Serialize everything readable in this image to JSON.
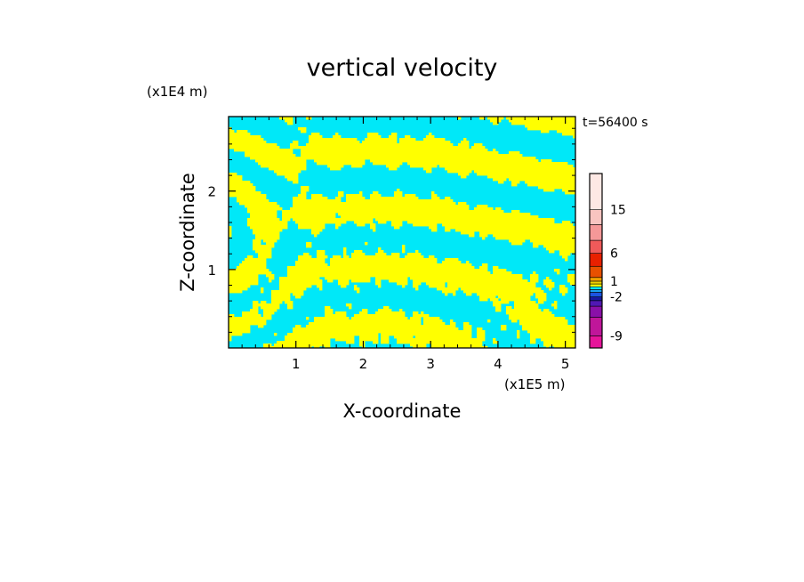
{
  "chart_data": {
    "type": "heatmap",
    "title": "vertical velocity",
    "xlabel": "X-coordinate",
    "ylabel": "Z-coordinate",
    "x_unit": "(x1E5 m)",
    "y_unit": "(x1E4 m)",
    "time_label": "t=56400 s",
    "xlim": [
      0,
      5.15
    ],
    "ylim": [
      0,
      2.95
    ],
    "x_ticks": [
      1,
      2,
      3,
      4,
      5
    ],
    "y_ticks": [
      1,
      2
    ],
    "colorbar": {
      "ticks": [
        {
          "value": 15,
          "label": "15"
        },
        {
          "value": 6,
          "label": "6"
        },
        {
          "value": 1,
          "label": "1"
        },
        {
          "value": -2,
          "label": "-2"
        },
        {
          "value": -9,
          "label": "-9"
        }
      ],
      "levels": [
        {
          "min": -12,
          "max": -9,
          "color": "#e6149a"
        },
        {
          "min": -9,
          "max": -6,
          "color": "#c0169a"
        },
        {
          "min": -6,
          "max": -4,
          "color": "#8a10a8"
        },
        {
          "min": -4,
          "max": -3,
          "color": "#5018b4"
        },
        {
          "min": -3,
          "max": -2,
          "color": "#1818a0"
        },
        {
          "min": -2,
          "max": -1,
          "color": "#1c54e0"
        },
        {
          "min": -1,
          "max": -0.5,
          "color": "#1aa0f0"
        },
        {
          "min": -0.5,
          "max": 0,
          "color": "#00e8f8"
        },
        {
          "min": 0,
          "max": 0.5,
          "color": "#ffff00"
        },
        {
          "min": 0.5,
          "max": 1,
          "color": "#f0d000"
        },
        {
          "min": 1,
          "max": 2,
          "color": "#f0a000"
        },
        {
          "min": 2,
          "max": 4,
          "color": "#e85000"
        },
        {
          "min": 4,
          "max": 6,
          "color": "#e82000"
        },
        {
          "min": 6,
          "max": 9,
          "color": "#f05a5a"
        },
        {
          "min": 9,
          "max": 12,
          "color": "#f59898"
        },
        {
          "min": 12,
          "max": 15,
          "color": "#f8c4c0"
        },
        {
          "min": 15,
          "max": 20,
          "color": "#fde8e4"
        }
      ]
    },
    "field_colors": {
      "negative": "#00e8f8",
      "positive": "#ffff00"
    }
  }
}
